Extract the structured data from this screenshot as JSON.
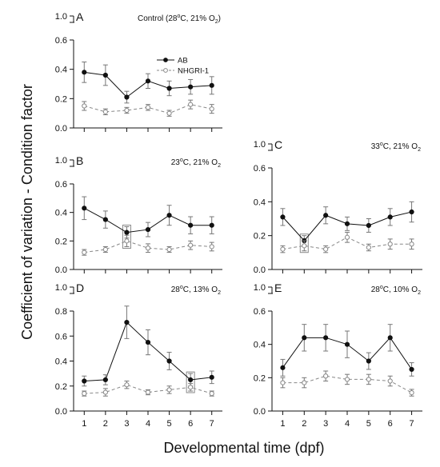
{
  "figure": {
    "ylabel": "Coefficient of variation - Condition factor",
    "xlabel": "Developmental time (dpf)"
  },
  "legend": {
    "entries": [
      {
        "name": "AB",
        "marker": "filled-circle",
        "line": "solid"
      },
      {
        "name": "NHGRI-1",
        "marker": "open-circle",
        "line": "dashed"
      }
    ]
  },
  "colors": {
    "ab": "#111111",
    "nhgri": "#888888",
    "errorbar": "#777777",
    "box": "#888888"
  },
  "chart_data": [
    {
      "type": "line",
      "panel": "A",
      "title": "Control (28°C, 21% O2)",
      "title_parts": {
        "pre": "Control (28",
        "deg": "o",
        "mid": "C, 21% O",
        "sub": "2",
        "post": ")"
      },
      "x": [
        1,
        2,
        3,
        4,
        5,
        6,
        7
      ],
      "xlim": [
        0.5,
        7.5
      ],
      "ylim": [
        0,
        0.6
      ],
      "yticks": [
        0.0,
        0.2,
        0.4,
        0.6
      ],
      "ytick_labels": [
        "0.0",
        "0.2",
        "0.4",
        "0.6"
      ],
      "broken_top_label": "1.0",
      "x_tick_labels": false,
      "series": [
        {
          "name": "AB",
          "values": [
            0.38,
            0.36,
            0.21,
            0.32,
            0.27,
            0.28,
            0.29
          ],
          "err": [
            0.07,
            0.07,
            0.04,
            0.05,
            0.05,
            0.05,
            0.06
          ]
        },
        {
          "name": "NHGRI-1",
          "values": [
            0.15,
            0.11,
            0.12,
            0.14,
            0.1,
            0.16,
            0.13
          ],
          "err": [
            0.03,
            0.02,
            0.02,
            0.02,
            0.02,
            0.03,
            0.03
          ]
        }
      ],
      "highlight_days": []
    },
    {
      "type": "line",
      "panel": "B",
      "title": "23°C, 21% O2",
      "title_parts": {
        "pre": "23",
        "deg": "o",
        "mid": "C, 21% O",
        "sub": "2",
        "post": ""
      },
      "x": [
        1,
        2,
        3,
        4,
        5,
        6,
        7
      ],
      "xlim": [
        0.5,
        7.5
      ],
      "ylim": [
        0,
        0.6
      ],
      "yticks": [
        0.0,
        0.2,
        0.4,
        0.6
      ],
      "ytick_labels": [
        "0.0",
        "0.2",
        "0.4",
        "0.6"
      ],
      "broken_top_label": "1.0",
      "x_tick_labels": false,
      "series": [
        {
          "name": "AB",
          "values": [
            0.43,
            0.35,
            0.26,
            0.28,
            0.38,
            0.31,
            0.31
          ],
          "err": [
            0.08,
            0.06,
            0.04,
            0.05,
            0.07,
            0.06,
            0.06
          ]
        },
        {
          "name": "NHGRI-1",
          "values": [
            0.12,
            0.14,
            0.2,
            0.15,
            0.14,
            0.17,
            0.16
          ],
          "err": [
            0.02,
            0.02,
            0.04,
            0.03,
            0.02,
            0.03,
            0.03
          ]
        }
      ],
      "highlight_days": [
        3
      ]
    },
    {
      "type": "line",
      "panel": "C",
      "title": "33°C, 21% O2",
      "title_parts": {
        "pre": "33",
        "deg": "o",
        "mid": "C, 21% O",
        "sub": "2",
        "post": ""
      },
      "x": [
        1,
        2,
        3,
        4,
        5,
        6,
        7
      ],
      "xlim": [
        0.5,
        7.5
      ],
      "ylim": [
        0,
        0.6
      ],
      "yticks": [
        0.0,
        0.2,
        0.4,
        0.6
      ],
      "ytick_labels": [
        "0.0",
        "0.2",
        "0.4",
        "0.6"
      ],
      "broken_top_label": "1.0",
      "x_tick_labels": false,
      "series": [
        {
          "name": "AB",
          "values": [
            0.31,
            0.17,
            0.32,
            0.27,
            0.26,
            0.31,
            0.34
          ],
          "err": [
            0.05,
            0.03,
            0.05,
            0.04,
            0.04,
            0.05,
            0.06
          ]
        },
        {
          "name": "NHGRI-1",
          "values": [
            0.12,
            0.14,
            0.12,
            0.19,
            0.13,
            0.15,
            0.15
          ],
          "err": [
            0.02,
            0.03,
            0.02,
            0.03,
            0.02,
            0.03,
            0.03
          ]
        }
      ],
      "highlight_days": [
        2
      ]
    },
    {
      "type": "line",
      "panel": "D",
      "title": "28°C, 13% O2",
      "title_parts": {
        "pre": "28",
        "deg": "o",
        "mid": "C, 13% O",
        "sub": "2",
        "post": ""
      },
      "x": [
        1,
        2,
        3,
        4,
        5,
        6,
        7
      ],
      "xlim": [
        0.5,
        7.5
      ],
      "ylim": [
        0,
        0.8
      ],
      "yticks": [
        0.0,
        0.2,
        0.4,
        0.6,
        0.8
      ],
      "ytick_labels": [
        "0.0",
        "0.2",
        "0.4",
        "0.6",
        "0.8"
      ],
      "broken_top_label": "1.0",
      "x_tick_labels": true,
      "series": [
        {
          "name": "AB",
          "values": [
            0.24,
            0.25,
            0.71,
            0.55,
            0.4,
            0.25,
            0.27
          ],
          "err": [
            0.04,
            0.04,
            0.13,
            0.1,
            0.07,
            0.05,
            0.05
          ]
        },
        {
          "name": "NHGRI-1",
          "values": [
            0.14,
            0.15,
            0.21,
            0.15,
            0.17,
            0.19,
            0.14
          ],
          "err": [
            0.02,
            0.03,
            0.03,
            0.02,
            0.03,
            0.03,
            0.02
          ]
        }
      ],
      "highlight_days": [
        6
      ]
    },
    {
      "type": "line",
      "panel": "E",
      "title": "28°C, 10% O2",
      "title_parts": {
        "pre": "28",
        "deg": "o",
        "mid": "C, 10% O",
        "sub": "2",
        "post": ""
      },
      "x": [
        1,
        2,
        3,
        4,
        5,
        6,
        7
      ],
      "xlim": [
        0.5,
        7.5
      ],
      "ylim": [
        0,
        0.6
      ],
      "yticks": [
        0.0,
        0.2,
        0.4,
        0.6
      ],
      "ytick_labels": [
        "0.0",
        "0.2",
        "0.4",
        "0.6"
      ],
      "broken_top_label": "1.0",
      "x_tick_labels": true,
      "series": [
        {
          "name": "AB",
          "values": [
            0.26,
            0.44,
            0.44,
            0.4,
            0.3,
            0.44,
            0.25
          ],
          "err": [
            0.05,
            0.08,
            0.08,
            0.08,
            0.05,
            0.08,
            0.04
          ]
        },
        {
          "name": "NHGRI-1",
          "values": [
            0.17,
            0.17,
            0.21,
            0.19,
            0.19,
            0.18,
            0.11
          ],
          "err": [
            0.03,
            0.03,
            0.03,
            0.03,
            0.03,
            0.03,
            0.02
          ]
        }
      ],
      "highlight_days": []
    }
  ]
}
